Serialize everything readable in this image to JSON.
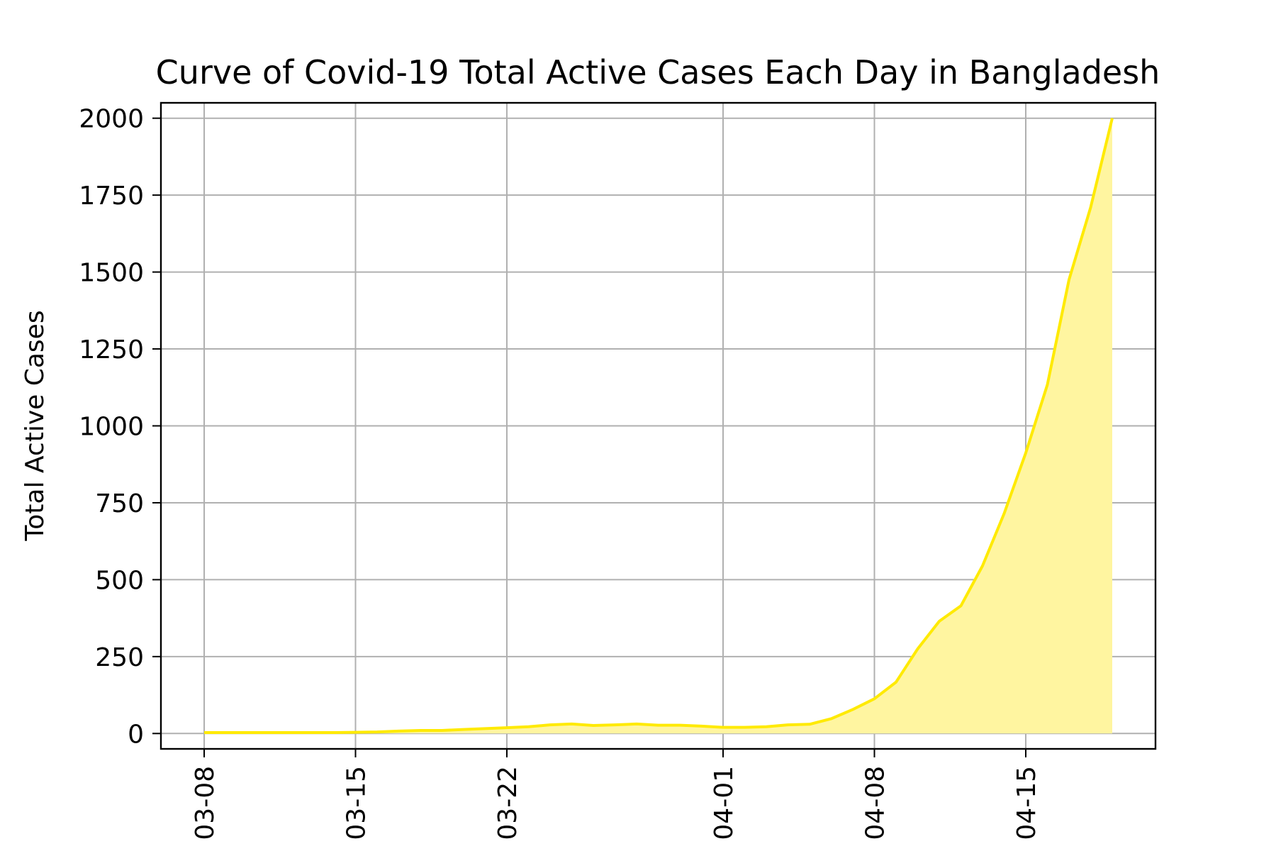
{
  "chart_data": {
    "type": "area",
    "title": "Curve of Covid-19 Total Active Cases Each Day in Bangladesh",
    "xlabel": "",
    "ylabel": "Total Active Cases",
    "x_tick_labels": [
      "03-08",
      "03-15",
      "03-22",
      "04-01",
      "04-08",
      "04-15"
    ],
    "x_tick_dates": [
      "2020-03-08",
      "2020-03-15",
      "2020-03-22",
      "2020-04-01",
      "2020-04-08",
      "2020-04-15"
    ],
    "x_range": [
      "2020-03-06",
      "2020-04-21"
    ],
    "y_ticks": [
      0,
      250,
      500,
      750,
      1000,
      1250,
      1500,
      1750,
      2000
    ],
    "ylim": [
      -50,
      2050
    ],
    "grid": true,
    "line_color": "#ffea00",
    "fill_color": "#fff5a0",
    "x": [
      "2020-03-08",
      "2020-03-09",
      "2020-03-10",
      "2020-03-11",
      "2020-03-12",
      "2020-03-13",
      "2020-03-14",
      "2020-03-15",
      "2020-03-16",
      "2020-03-17",
      "2020-03-18",
      "2020-03-19",
      "2020-03-20",
      "2020-03-21",
      "2020-03-22",
      "2020-03-23",
      "2020-03-24",
      "2020-03-25",
      "2020-03-26",
      "2020-03-27",
      "2020-03-28",
      "2020-03-29",
      "2020-03-30",
      "2020-03-31",
      "2020-04-01",
      "2020-04-02",
      "2020-04-03",
      "2020-04-04",
      "2020-04-05",
      "2020-04-06",
      "2020-04-07",
      "2020-04-08",
      "2020-04-09",
      "2020-04-10",
      "2020-04-11",
      "2020-04-12",
      "2020-04-13",
      "2020-04-14",
      "2020-04-15",
      "2020-04-16",
      "2020-04-17",
      "2020-04-18",
      "2020-04-19"
    ],
    "values": [
      3,
      3,
      3,
      3,
      3,
      3,
      3,
      4,
      5,
      8,
      10,
      10,
      13,
      16,
      19,
      22,
      28,
      31,
      26,
      28,
      31,
      27,
      27,
      24,
      20,
      20,
      22,
      28,
      30,
      48,
      78,
      113,
      167,
      275,
      365,
      415,
      545,
      715,
      912,
      1134,
      1475,
      1710,
      2000
    ]
  }
}
